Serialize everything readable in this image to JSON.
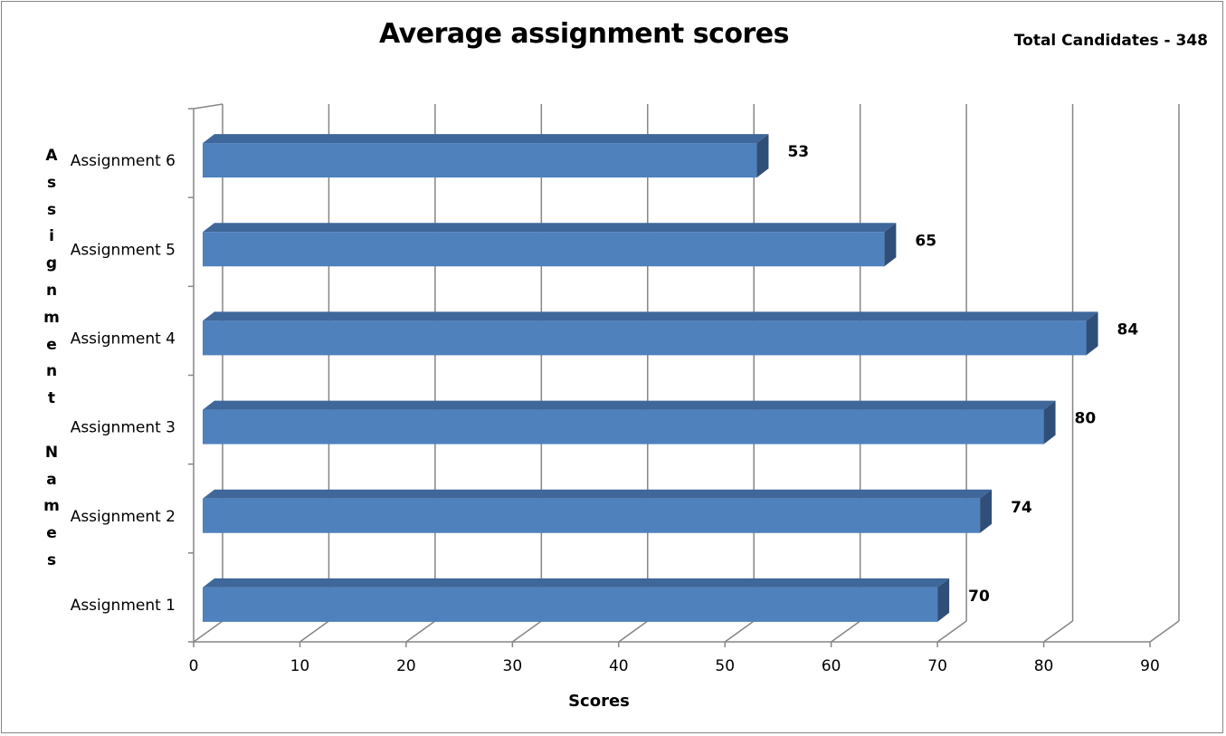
{
  "chart_data": {
    "type": "bar",
    "orientation": "horizontal",
    "style": "3d",
    "title": "Average assignment scores",
    "annotation": "Total Candidates - 348",
    "xlabel": "Scores",
    "ylabel": "Assignment Names",
    "categories": [
      "Assignment 1",
      "Assignment 2",
      "Assignment 3",
      "Assignment 4",
      "Assignment 5",
      "Assignment 6"
    ],
    "values": [
      70,
      74,
      80,
      84,
      65,
      53
    ],
    "xlim": [
      0,
      90
    ],
    "xticks": [
      0,
      10,
      20,
      30,
      40,
      50,
      60,
      70,
      80,
      90
    ],
    "grid": true,
    "legend": "none",
    "colors": {
      "bar_front": "#4f81bd",
      "bar_top": "#3f6799",
      "bar_side": "#2f4f78",
      "grid": "#868686"
    }
  }
}
